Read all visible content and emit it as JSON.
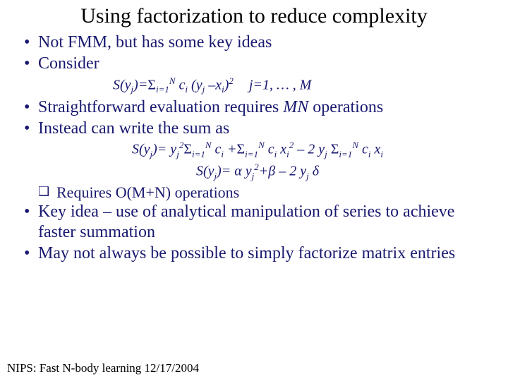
{
  "title": "Using factorization to reduce complexity",
  "bullets": {
    "b1": "Not FMM, but has some key ideas",
    "b2": "Consider",
    "b3_a": "Straightforward evaluation requires ",
    "b3_mn": "MN",
    "b3_b": " operations",
    "b4": "Instead can write the sum as",
    "sub1": "Requires O(M+N) operations",
    "b5": "Key idea – use of analytical manipulation of series to achieve faster summation",
    "b6": "May not always be possible to simply factorize matrix entries"
  },
  "formulas": {
    "f1_lhs": "S(y",
    "f1_j": "j",
    "f1_eq": ")=",
    "f1_sig": "Σ",
    "f1_lo": "i=1",
    "f1_hi": "N",
    "f1_ci": " c",
    "f1_i": "i",
    "f1_par": " (y",
    "f1_minus": " –x",
    "f1_sq": ")",
    "f1_two": "2",
    "f1_r1": "j=1, … , M",
    "f2a": "S(y",
    "f2b": ")= y",
    "f2_sig": "Σ",
    "f2_ci": " c",
    "f2_plus": " +",
    "f2_cx": " c",
    "f2_xi": " x",
    "f2_m2y": " – 2 y",
    "f3a": "S(y",
    "f3b": ")= α y",
    "f3c": "+β – 2 y",
    "f3d": " δ"
  },
  "footer": "NIPS: Fast N-body learning 12/17/2004"
}
